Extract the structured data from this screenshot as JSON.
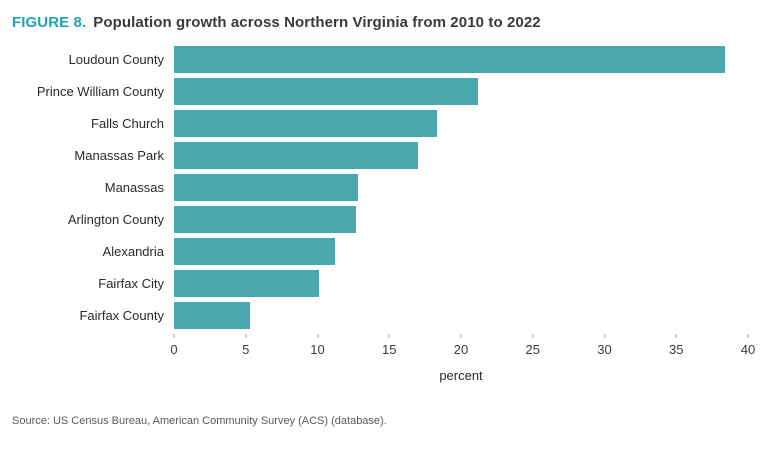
{
  "title": {
    "prefix": "FIGURE 8.",
    "text": "Population growth across Northern Virginia from 2010 to 2022"
  },
  "colors": {
    "accent": "#1ea4b5",
    "bar": "#4ba7ae"
  },
  "chart_data": {
    "type": "bar",
    "orientation": "horizontal",
    "title": "Population growth across Northern Virginia from 2010 to 2022",
    "categories": [
      "Loudoun County",
      "Prince William County",
      "Falls Church",
      "Manassas Park",
      "Manassas",
      "Arlington County",
      "Alexandria",
      "Fairfax City",
      "Fairfax County"
    ],
    "values": [
      38.4,
      21.2,
      18.3,
      17.0,
      12.8,
      12.7,
      11.2,
      10.1,
      5.3
    ],
    "xlabel": "percent",
    "ylabel": "",
    "xlim": [
      0,
      40
    ],
    "xticks": [
      0,
      5,
      10,
      15,
      20,
      25,
      30,
      35,
      40
    ],
    "grid": false,
    "legend": false,
    "bar_color": "#4ba7ae"
  },
  "source": "Source: US Census Bureau, American Community Survey (ACS) (database)."
}
